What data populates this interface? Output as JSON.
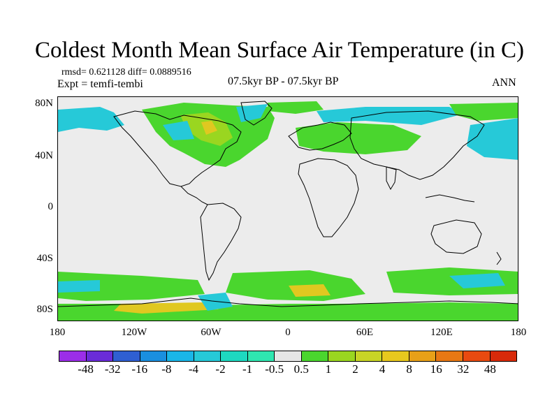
{
  "title": "Coldest Month Mean Surface Air Temperature (in C)",
  "stats": "rmsd= 0.621128 diff= 0.0889516",
  "expt": "Expt = temfi-tembi",
  "period": "07.5kyr BP - 07.5kyr BP",
  "season": "ANN",
  "y_ticks": [
    "80N",
    "40N",
    "0",
    "40S",
    "80S"
  ],
  "x_ticks": [
    "180",
    "120W",
    "60W",
    "0",
    "60E",
    "120E",
    "180"
  ],
  "colorbar": {
    "colors": [
      "#9b2ee8",
      "#6a2cd8",
      "#2f5fd2",
      "#1a8fdf",
      "#19b6e8",
      "#26c9d8",
      "#1ed8c0",
      "#2fe6b0",
      "#e6e6e6",
      "#4ad62e",
      "#9ad620",
      "#c8d426",
      "#e8c81e",
      "#e8a018",
      "#e87814",
      "#e84a10",
      "#d82a0a"
    ],
    "labels": [
      "-48",
      "-32",
      "-16",
      "-8",
      "-4",
      "-2",
      "-1",
      "-0.5",
      "0.5",
      "1",
      "2",
      "4",
      "8",
      "16",
      "32",
      "48"
    ]
  },
  "map_colors": {
    "background": "#ececec",
    "green": "#4ad62e",
    "yellowgreen": "#9ad620",
    "yellow": "#e0c820",
    "cyan": "#26c9d8",
    "teal": "#2fe6b0",
    "blue": "#1a9ae0",
    "coast": "#000000"
  }
}
